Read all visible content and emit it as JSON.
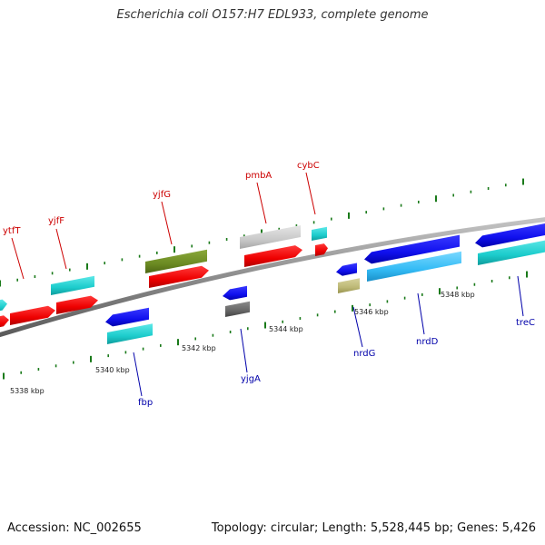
{
  "title": "Escherichia coli O157:H7 EDL933, complete genome",
  "footer": {
    "accession": "Accession: NC_002655",
    "topology": "Topology: circular; Length: 5,528,445 bp; Genes: 5,426"
  },
  "colors": {
    "backbone": "#8c8c8c",
    "tick": "#1a7a1a",
    "plus_strand_label": "#cc0000",
    "minus_strand_label": "#0000aa"
  },
  "scale_labels": [
    "5338 kbp",
    "5340 kbp",
    "5342 kbp",
    "5344 kbp",
    "5346 kbp",
    "5348 kbp"
  ],
  "gene_labels": {
    "plus": [
      "ytfT",
      "yjfF",
      "yjfG",
      "pmbA",
      "cybC"
    ],
    "minus": [
      "fbp",
      "yjgA",
      "nrdG",
      "nrdD",
      "treC"
    ]
  },
  "features": [
    {
      "name": "cyan-1",
      "color": "cyan"
    },
    {
      "name": "red-1",
      "color": "red"
    },
    {
      "name": "cyan-2",
      "color": "cyan"
    },
    {
      "name": "red-2",
      "color": "red"
    },
    {
      "name": "red-3",
      "color": "red"
    },
    {
      "name": "olive-1",
      "color": "olive"
    },
    {
      "name": "red-4",
      "color": "red"
    },
    {
      "name": "grey-1",
      "color": "lightgrey"
    },
    {
      "name": "red-5",
      "color": "red"
    },
    {
      "name": "cyan-3",
      "color": "cyan"
    },
    {
      "name": "red-6",
      "color": "red"
    },
    {
      "name": "blue-1",
      "color": "blue"
    },
    {
      "name": "cyan-4",
      "color": "cyan"
    },
    {
      "name": "blue-2",
      "color": "blue"
    },
    {
      "name": "darkgrey-1",
      "color": "darkgrey"
    },
    {
      "name": "blue-3",
      "color": "blue"
    },
    {
      "name": "khaki-1",
      "color": "khaki"
    },
    {
      "name": "blue-4",
      "color": "blue"
    },
    {
      "name": "skyblue-1",
      "color": "skyblue"
    },
    {
      "name": "blue-5",
      "color": "blue"
    },
    {
      "name": "cyan-5",
      "color": "cyan"
    }
  ]
}
